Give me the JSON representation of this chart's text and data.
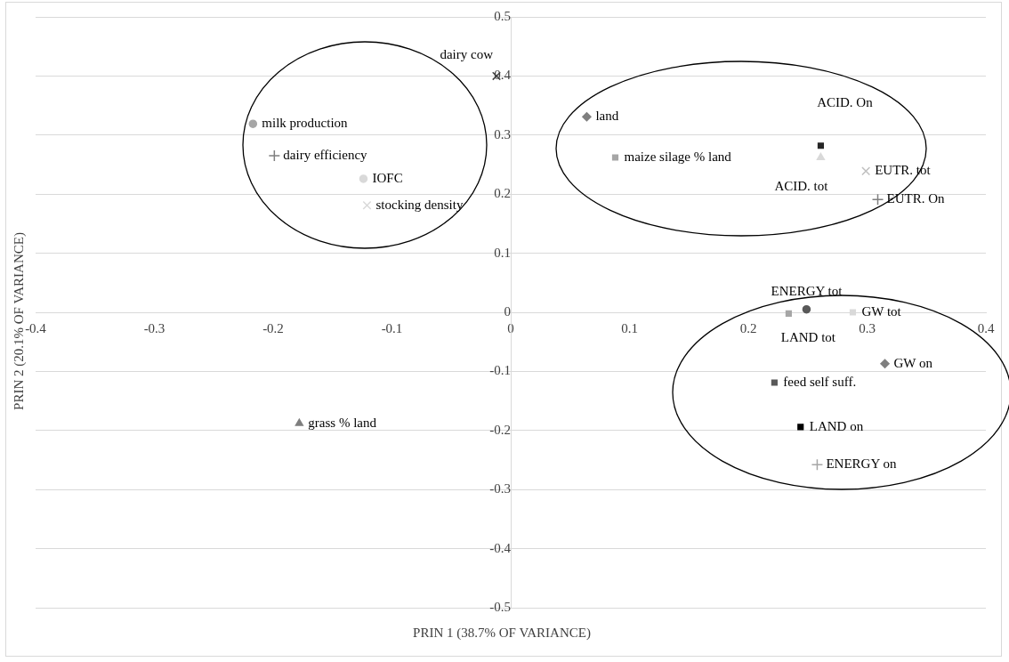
{
  "chart_data": {
    "type": "scatter",
    "xlabel": "PRIN 1 (38.7% OF VARIANCE)",
    "ylabel": "PRIN 2 (20.1% OF VARIANCE)",
    "xlim": [
      -0.4,
      0.4
    ],
    "xticks": [
      -0.4,
      -0.3,
      -0.2,
      -0.1,
      0,
      0.1,
      0.2,
      0.3,
      0.4
    ],
    "ylim": [
      -0.5,
      0.5
    ],
    "yticks": [
      -0.5,
      -0.4,
      -0.3,
      -0.2,
      -0.1,
      0,
      0.1,
      0.2,
      0.3,
      0.4,
      0.5
    ],
    "grid": "y",
    "legend": false,
    "series": [
      {
        "name": "dairy cow",
        "color": "#404040",
        "marker": "x",
        "x": [
          -0.012
        ],
        "values": [
          0.4
        ]
      },
      {
        "name": "milk production",
        "color": "#a6a6a6",
        "marker": "circle",
        "x": [
          -0.217
        ],
        "values": [
          0.319
        ]
      },
      {
        "name": "dairy efficiency",
        "color": "#7f7f7f",
        "marker": "cross",
        "x": [
          -0.199
        ],
        "values": [
          0.265
        ]
      },
      {
        "name": "IOFC",
        "color": "#d9d9d9",
        "marker": "circle",
        "x": [
          -0.124
        ],
        "values": [
          0.226
        ]
      },
      {
        "name": "stocking density",
        "color": "#d9d9d9",
        "marker": "x",
        "x": [
          -0.121
        ],
        "values": [
          0.181
        ]
      },
      {
        "name": "land",
        "color": "#7f7f7f",
        "marker": "diamond",
        "x": [
          0.064
        ],
        "values": [
          0.331
        ]
      },
      {
        "name": "maize silage % land",
        "color": "#a6a6a6",
        "marker": "square",
        "x": [
          0.088
        ],
        "values": [
          0.262
        ]
      },
      {
        "name": "ACID. On",
        "color": "#262626",
        "marker": "square",
        "x": [
          0.261
        ],
        "values": [
          0.282
        ]
      },
      {
        "name": "ACID. tot",
        "color": "#d9d9d9",
        "marker": "triangle",
        "x": [
          0.261
        ],
        "values": [
          0.262
        ]
      },
      {
        "name": "EUTR. tot",
        "color": "#bfbfbf",
        "marker": "x",
        "x": [
          0.299
        ],
        "values": [
          0.239
        ]
      },
      {
        "name": "EUTR. On",
        "color": "#7f7f7f",
        "marker": "cross",
        "x": [
          0.309
        ],
        "values": [
          0.191
        ]
      },
      {
        "name": "ENERGY tot",
        "color": "#595959",
        "marker": "circle",
        "x": [
          0.249
        ],
        "values": [
          0.005
        ]
      },
      {
        "name": "LAND tot",
        "color": "#a6a6a6",
        "marker": "square",
        "x": [
          0.234
        ],
        "values": [
          -0.002
        ]
      },
      {
        "name": "GW tot",
        "color": "#d9d9d9",
        "marker": "square",
        "x": [
          0.288
        ],
        "values": [
          0.0
        ]
      },
      {
        "name": "GW on",
        "color": "#7f7f7f",
        "marker": "diamond",
        "x": [
          0.315
        ],
        "values": [
          -0.087
        ]
      },
      {
        "name": "feed self suff.",
        "color": "#595959",
        "marker": "square",
        "x": [
          0.222
        ],
        "values": [
          -0.119
        ]
      },
      {
        "name": "LAND on",
        "color": "#000000",
        "marker": "square",
        "x": [
          0.244
        ],
        "values": [
          -0.194
        ]
      },
      {
        "name": "ENERGY on",
        "color": "#a6a6a6",
        "marker": "cross",
        "x": [
          0.258
        ],
        "values": [
          -0.258
        ]
      },
      {
        "name": "grass % land",
        "color": "#7f7f7f",
        "marker": "triangle",
        "x": [
          -0.178
        ],
        "values": [
          -0.188
        ]
      }
    ]
  }
}
